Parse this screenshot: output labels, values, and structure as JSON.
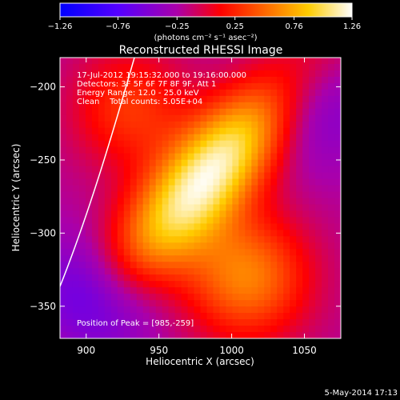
{
  "chart_data": {
    "type": "heatmap",
    "title": "Reconstructed RHESSI Image",
    "xlabel": "Heliocentric X (arcsec)",
    "ylabel": "Heliocentric Y (arcsec)",
    "x_range": [
      882,
      1075
    ],
    "y_range": [
      -372,
      -180
    ],
    "x_ticks": [
      900,
      950,
      1000,
      1050
    ],
    "x_tick_labels": [
      "900",
      "950",
      "1000",
      "1050"
    ],
    "y_ticks": [
      -200,
      -250,
      -300,
      -350
    ],
    "y_tick_labels": [
      "−200",
      "−250",
      "−300",
      "−350"
    ],
    "colorbar": {
      "min": -1.26,
      "max": 1.26,
      "ticks": [
        -1.26,
        -0.76,
        -0.25,
        0.25,
        0.76,
        1.26
      ],
      "tick_labels": [
        "−1.26",
        "−0.76",
        "−0.25",
        "0.25",
        "0.76",
        "1.26"
      ],
      "units_label": "(photons cm⁻² s⁻¹ asec⁻²)"
    },
    "peak": {
      "x": 985,
      "y": -259,
      "value": 1.26
    },
    "annotations": [
      "17-Jul-2012 19:15:32.000 to 19:16:00.000",
      "Detectors: 3F 5F 6F 7F 8F 9F, Att 1",
      "Energy Range: 12.0 - 25.0 keV",
      "Clean    Total counts: 5.05E+04"
    ],
    "peak_label": "Position of Peak = [985,-259]"
  },
  "footer": {
    "timestamp": "5-May-2014 17:13"
  },
  "colors": {
    "background": "#000000",
    "colorbar_stops": [
      "#0000ff",
      "#5500ff",
      "#aa00aa",
      "#ff0000",
      "#ff6600",
      "#ffcc00",
      "#ffffff"
    ]
  }
}
